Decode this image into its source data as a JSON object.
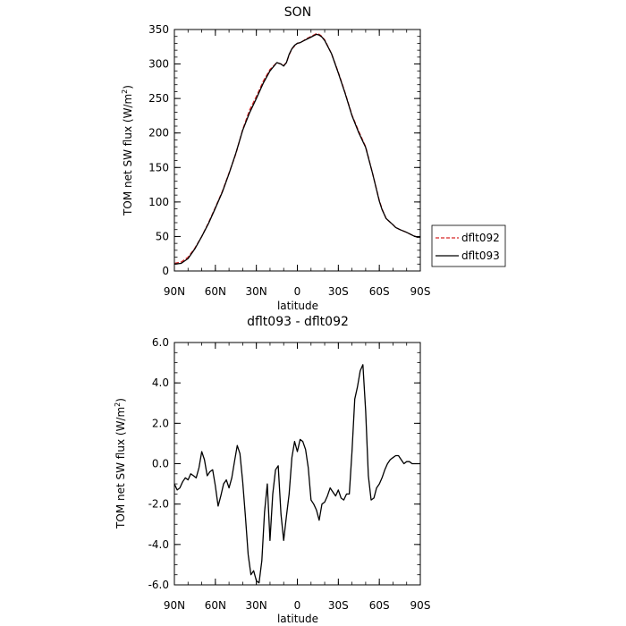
{
  "chart_data": [
    {
      "type": "line",
      "title": "SON",
      "xlabel": "latitude",
      "ylabel": "TOM net SW flux (W/m",
      "ylabel_sup": "2",
      "ylabel_tail": ")",
      "xlim": [
        90,
        -90
      ],
      "ylim": [
        0,
        350
      ],
      "x_ticks": [
        90,
        60,
        30,
        0,
        -30,
        -60,
        -90
      ],
      "x_tick_labels": [
        "90N",
        "60N",
        "30N",
        "0",
        "30S",
        "60S",
        "90S"
      ],
      "y_ticks": [
        0,
        50,
        100,
        150,
        200,
        250,
        300,
        350
      ],
      "y_tick_labels": [
        "0",
        "50",
        "100",
        "150",
        "200",
        "250",
        "300",
        "350"
      ],
      "legend_position": "right-outside-bottom",
      "x": [
        90,
        85,
        80,
        75,
        70,
        65,
        60,
        55,
        50,
        45,
        40,
        35,
        30,
        25,
        20,
        15,
        12,
        10,
        8,
        6,
        4,
        2,
        0,
        -2,
        -4,
        -6,
        -8,
        -10,
        -12,
        -14,
        -16,
        -18,
        -20,
        -25,
        -30,
        -35,
        -40,
        -45,
        -50,
        -55,
        -60,
        -62,
        -65,
        -70,
        -72,
        -75,
        -80,
        -85,
        -88,
        -90
      ],
      "series": [
        {
          "name": "dflt092",
          "color": "#d62728",
          "style": "dashed",
          "values": [
            11,
            13,
            20,
            33,
            50,
            70,
            92,
            115,
            142,
            170,
            205,
            233,
            253,
            275,
            292,
            302,
            300,
            298,
            302,
            313,
            322,
            326,
            330,
            331,
            333,
            336,
            338,
            340,
            342,
            344,
            343,
            340,
            335,
            315,
            288,
            258,
            226,
            202,
            180,
            142,
            102,
            90,
            76,
            67,
            63,
            60,
            56,
            51,
            49,
            49
          ]
        },
        {
          "name": "dflt093",
          "color": "#000000",
          "style": "solid",
          "values": [
            10,
            11,
            18,
            32,
            50,
            69,
            91,
            114,
            141,
            171,
            204,
            229,
            250,
            272,
            290,
            302,
            300,
            297,
            302,
            314,
            322,
            327,
            330,
            331,
            333,
            335,
            337,
            339,
            341,
            343,
            342,
            339,
            334,
            315,
            287,
            257,
            225,
            200,
            179,
            142,
            101,
            89,
            76,
            67,
            63,
            60,
            56,
            51,
            49,
            49
          ]
        }
      ]
    },
    {
      "type": "line",
      "title": "dflt093 - dflt092",
      "xlabel": "latitude",
      "ylabel": "TOM net SW flux (W/m",
      "ylabel_sup": "2",
      "ylabel_tail": ")",
      "xlim": [
        90,
        -90
      ],
      "ylim": [
        -6,
        6
      ],
      "x_ticks": [
        90,
        60,
        30,
        0,
        -30,
        -60,
        -90
      ],
      "x_tick_labels": [
        "90N",
        "60N",
        "30N",
        "0",
        "30S",
        "60S",
        "90S"
      ],
      "y_ticks": [
        -6,
        -4,
        -2,
        0,
        2,
        4,
        6
      ],
      "y_tick_labels": [
        "-6.0",
        "-4.0",
        "-2.0",
        "0.0",
        "2.0",
        "4.0",
        "6.0"
      ],
      "x": [
        90,
        88,
        86,
        84,
        82,
        80,
        78,
        76,
        74,
        72,
        70,
        68,
        66,
        64,
        62,
        60,
        58,
        56,
        54,
        52,
        50,
        48,
        46,
        44,
        42,
        40,
        38,
        36,
        34,
        32,
        30,
        28,
        26,
        24,
        22,
        20,
        18,
        16,
        14,
        12,
        10,
        8,
        6,
        4,
        2,
        0,
        -2,
        -4,
        -6,
        -8,
        -10,
        -12,
        -14,
        -16,
        -18,
        -20,
        -22,
        -24,
        -26,
        -28,
        -30,
        -32,
        -34,
        -36,
        -38,
        -40,
        -42,
        -44,
        -46,
        -48,
        -50,
        -52,
        -54,
        -56,
        -58,
        -60,
        -62,
        -64,
        -66,
        -68,
        -70,
        -72,
        -74,
        -76,
        -78,
        -80,
        -82,
        -84,
        -86,
        -88,
        -90
      ],
      "series": [
        {
          "name": "dflt093 - dflt092",
          "color": "#000000",
          "style": "solid",
          "values": [
            -1.0,
            -1.3,
            -1.2,
            -0.9,
            -0.7,
            -0.8,
            -0.5,
            -0.6,
            -0.7,
            -0.2,
            0.6,
            0.2,
            -0.6,
            -0.4,
            -0.3,
            -1.1,
            -2.1,
            -1.6,
            -1.0,
            -0.8,
            -1.2,
            -0.7,
            0.1,
            0.9,
            0.5,
            -0.9,
            -2.6,
            -4.5,
            -5.5,
            -5.3,
            -5.8,
            -5.9,
            -4.8,
            -2.4,
            -1.0,
            -3.8,
            -1.5,
            -0.3,
            -0.1,
            -2.5,
            -3.8,
            -2.6,
            -1.5,
            0.3,
            1.1,
            0.6,
            1.2,
            1.1,
            0.7,
            -0.2,
            -1.8,
            -2.0,
            -2.3,
            -2.8,
            -2.0,
            -1.9,
            -1.6,
            -1.2,
            -1.4,
            -1.6,
            -1.3,
            -1.7,
            -1.8,
            -1.5,
            -1.5,
            0.6,
            3.2,
            3.8,
            4.6,
            4.9,
            2.6,
            -0.6,
            -1.8,
            -1.7,
            -1.2,
            -1.0,
            -0.7,
            -0.3,
            0.0,
            0.2,
            0.3,
            0.4,
            0.4,
            0.2,
            0.0,
            0.1,
            0.1,
            0.0,
            0.0,
            0.0,
            0.0
          ]
        }
      ]
    }
  ]
}
